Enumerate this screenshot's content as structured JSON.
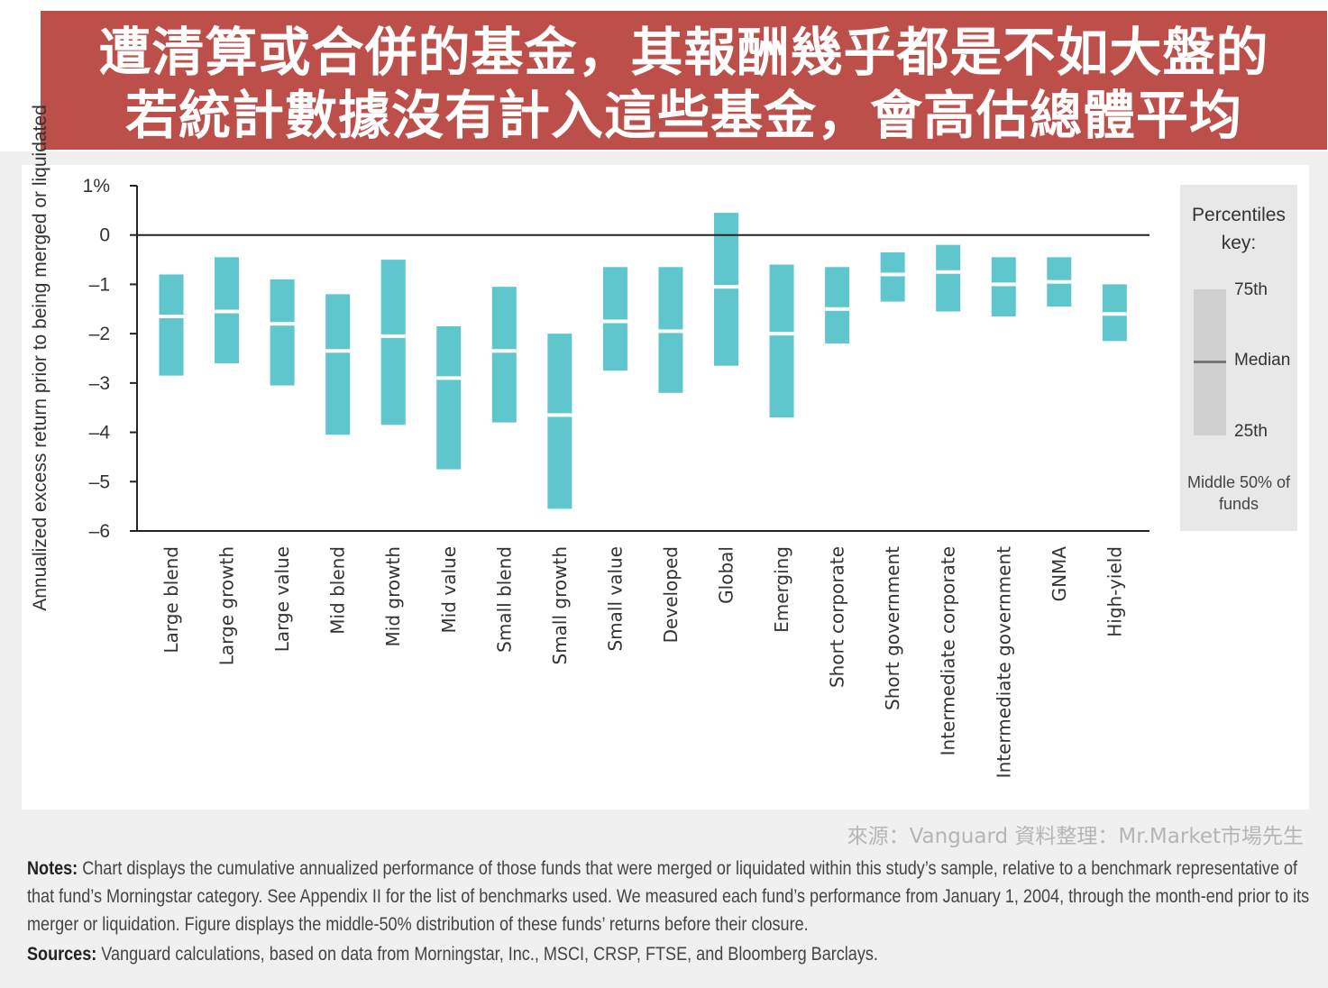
{
  "banner": {
    "line1": "遭清算或合併的基金，其報酬幾乎都是不如大盤的",
    "line2": "若統計數據沒有計入這些基金，會高估總體平均"
  },
  "colors": {
    "banner": "#bd4f4b",
    "bar": "#5ec6cc",
    "axis": "#222222"
  },
  "chart_data": {
    "type": "bar",
    "subtype": "floating-range",
    "ylabel": "Annualized excess return prior to being merged or liquidated",
    "ylim": [
      -6,
      1
    ],
    "yticks": [
      {
        "value": 1,
        "label": "1%"
      },
      {
        "value": 0,
        "label": "0"
      },
      {
        "value": -1,
        "label": "–1"
      },
      {
        "value": -2,
        "label": "–2"
      },
      {
        "value": -3,
        "label": "–3"
      },
      {
        "value": -4,
        "label": "–4"
      },
      {
        "value": -5,
        "label": "–5"
      },
      {
        "value": -6,
        "label": "–6"
      }
    ],
    "categories": [
      "Large blend",
      "Large growth",
      "Large value",
      "Mid blend",
      "Mid growth",
      "Mid value",
      "Small blend",
      "Small growth",
      "Small value",
      "Developed",
      "Global",
      "Emerging",
      "Short corporate",
      "Short government",
      "Intermediate corporate",
      "Intermediate government",
      "GNMA",
      "High-yield"
    ],
    "p75": [
      -0.8,
      -0.45,
      -0.9,
      -1.2,
      -0.5,
      -1.85,
      -1.05,
      -2.0,
      -0.65,
      -0.65,
      0.45,
      -0.6,
      -0.65,
      -0.35,
      -0.2,
      -0.45,
      -0.45,
      -1.0
    ],
    "median": [
      -1.65,
      -1.55,
      -1.8,
      -2.35,
      -2.05,
      -2.9,
      -2.35,
      -3.65,
      -1.75,
      -1.95,
      -1.05,
      -2.0,
      -1.5,
      -0.8,
      -0.75,
      -1.0,
      -0.95,
      -1.6
    ],
    "p25": [
      -2.85,
      -2.6,
      -3.05,
      -4.05,
      -3.85,
      -4.75,
      -3.8,
      -5.55,
      -2.75,
      -3.2,
      -2.65,
      -3.7,
      -2.2,
      -1.35,
      -1.55,
      -1.65,
      -1.45,
      -2.15
    ],
    "legend": {
      "title": "Percentiles key:",
      "labels": [
        "75th",
        "Median",
        "25th"
      ],
      "footer": "Middle 50% of funds",
      "placement": "right"
    }
  },
  "source_line": "來源：Vanguard  資料整理：Mr.Market市場先生",
  "notes": {
    "notes_label": "Notes:",
    "notes_text": " Chart displays the cumulative annualized performance of those funds that were merged or liquidated within this study’s sample, relative to a benchmark representative of that fund’s Morningstar category. See Appendix II for the list of benchmarks used. We measured each fund’s performance from January 1, 2004, through the month-end prior to its merger or liquidation. Figure displays the middle-50% distribution of these funds’ returns before their closure.",
    "sources_label": "Sources:",
    "sources_text": " Vanguard calculations, based on data from Morningstar, Inc., MSCI, CRSP, FTSE, and Bloomberg Barclays."
  }
}
